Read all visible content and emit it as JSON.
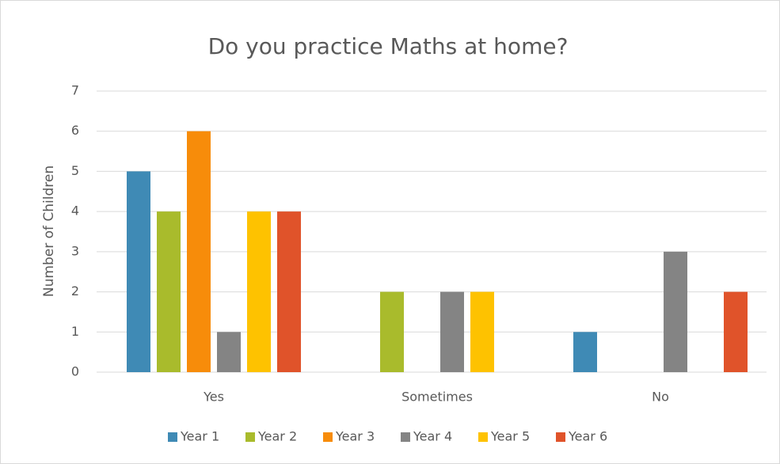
{
  "chart_data": {
    "type": "bar",
    "title": "Do you practice Maths at home?",
    "y_label": "Number of Children",
    "categories": [
      "Yes",
      "Sometimes",
      "No"
    ],
    "series": [
      {
        "name": "Year 1",
        "color": "#3f8ab5",
        "values": [
          5,
          0,
          1
        ]
      },
      {
        "name": "Year 2",
        "color": "#a9bb2c",
        "values": [
          4,
          2,
          0
        ]
      },
      {
        "name": "Year 3",
        "color": "#f78c0a",
        "values": [
          6,
          0,
          0
        ]
      },
      {
        "name": "Year 4",
        "color": "#848484",
        "values": [
          1,
          2,
          3
        ]
      },
      {
        "name": "Year 5",
        "color": "#fec200",
        "values": [
          4,
          2,
          0
        ]
      },
      {
        "name": "Year 6",
        "color": "#e0532a",
        "values": [
          4,
          0,
          2
        ]
      }
    ],
    "ylim": [
      0,
      7
    ],
    "yticks": [
      0,
      1,
      2,
      3,
      4,
      5,
      6,
      7
    ],
    "grid": true,
    "legend": "bottom"
  }
}
